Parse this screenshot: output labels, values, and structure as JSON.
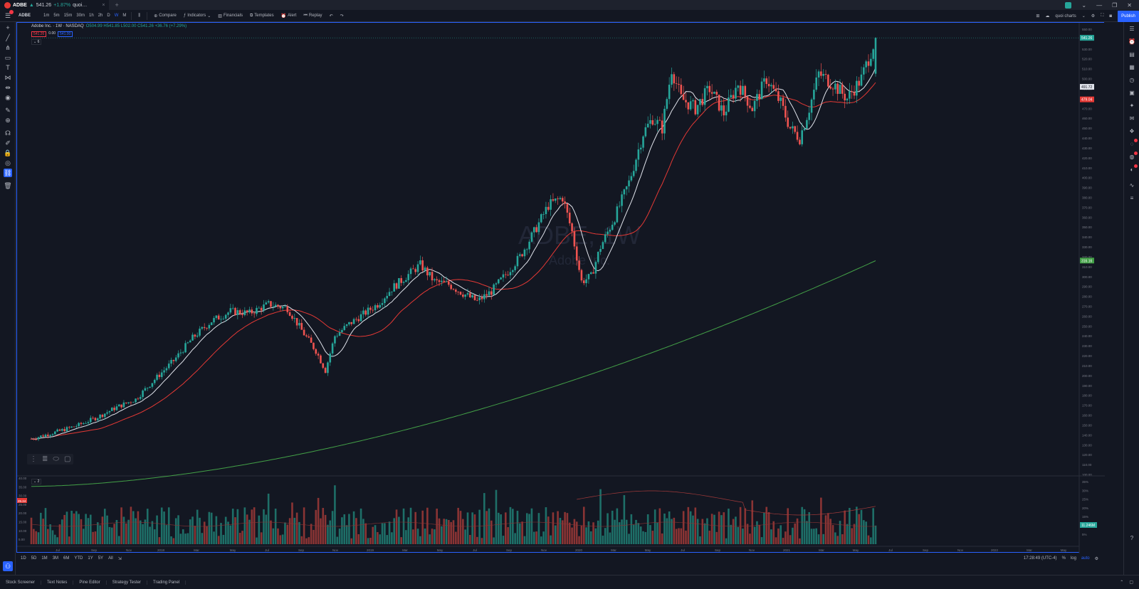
{
  "browser_tab": {
    "symbol": "ADBE",
    "price": "541.26",
    "change": "+1.87%",
    "suffix": "quoi…",
    "close": "×",
    "new_tab": "+"
  },
  "toolbar": {
    "symbol": "ADBE",
    "intervals": [
      "1m",
      "5m",
      "15m",
      "30m",
      "1h",
      "2h",
      "D",
      "W",
      "M"
    ],
    "active_interval": "W",
    "compare": "Compare",
    "indicators": "Indicators",
    "financials": "Financials",
    "templates": "Templates",
    "alert": "Alert",
    "replay": "Replay",
    "layout_name": "quoi charts",
    "publish": "Publish"
  },
  "legend": {
    "title": "Adobe Inc. · 1W · NASDAQ",
    "ohlc": "O504.99 H541.85 L502.00 C541.26 +36.76 (+7.29%)",
    "sell": "541.26",
    "spread": "0.00",
    "buy": "541.00",
    "indicators_toggle": "6"
  },
  "watermark": {
    "symbol": "ADBE, 1W",
    "name": "Adobe Inc."
  },
  "price_labels": {
    "last": "541.26",
    "ma_white": "491.72",
    "ma_red": "479.04",
    "ma_green": "316.16",
    "volume_last": "11.246M",
    "volume_left_badge": "25.24"
  },
  "price_scale": [
    "550.00",
    "540.00",
    "530.00",
    "520.00",
    "510.00",
    "500.00",
    "490.00",
    "480.00",
    "470.00",
    "460.00",
    "450.00",
    "440.00",
    "430.00",
    "420.00",
    "410.00",
    "400.00",
    "390.00",
    "380.00",
    "370.00",
    "360.00",
    "350.00",
    "340.00",
    "330.00",
    "320.00",
    "310.00",
    "300.00",
    "290.00",
    "280.00",
    "270.00",
    "260.00",
    "250.00",
    "240.00",
    "230.00",
    "220.00",
    "210.00",
    "200.00",
    "190.00",
    "180.00",
    "170.00",
    "160.00",
    "150.00",
    "140.00",
    "130.00",
    "120.00",
    "110.00",
    "100.00"
  ],
  "volume_scale_left": [
    "40.00",
    "35.00",
    "30.00",
    "25.00",
    "20.00",
    "15.00",
    "10.00",
    "5.00"
  ],
  "volume_scale_right": [
    "35%",
    "30%",
    "25%",
    "20%",
    "15%",
    "10%",
    "5%"
  ],
  "time_axis": [
    "Jul",
    "Sep",
    "Nov",
    "2018",
    "Mar",
    "May",
    "Jul",
    "Sep",
    "Nov",
    "2019",
    "Mar",
    "May",
    "Jul",
    "Sep",
    "Nov",
    "2020",
    "Mar",
    "May",
    "Jul",
    "Sep",
    "Nov",
    "2021",
    "Mar",
    "May",
    "Jul",
    "Sep",
    "Nov",
    "2022",
    "Mar",
    "May"
  ],
  "range_buttons": [
    "1D",
    "5D",
    "1M",
    "3M",
    "6M",
    "YTD",
    "1Y",
    "5Y",
    "All"
  ],
  "range_right": {
    "clock": "17:28:49 (UTC-4)",
    "pct": "%",
    "log": "log",
    "auto": "auto"
  },
  "bottom_panels": [
    "Stock Screener",
    "Text Notes",
    "Pine Editor",
    "Strategy Tester",
    "Trading Panel"
  ],
  "colors": {
    "up": "#26a69a",
    "down": "#ef5350",
    "ma_white": "#e0e3eb",
    "ma_red": "#e53935",
    "ma_green": "#43a047",
    "accent": "#2962ff"
  }
}
